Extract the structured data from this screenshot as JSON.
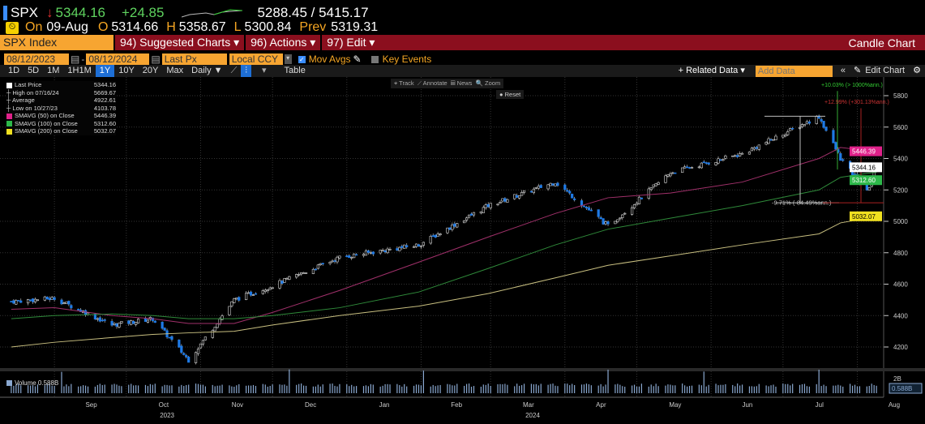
{
  "quote": {
    "ticker": "SPX",
    "arrow": "↓",
    "last": "5344.16",
    "change": "+24.85",
    "range": "5288.45 / 5415.17",
    "on_label": "On",
    "date": "09-Aug",
    "open_label": "O",
    "open": "5314.66",
    "high_label": "H",
    "high": "5358.67",
    "low_label": "L",
    "low": "5300.84",
    "prev_label": "Prev",
    "prev": "5319.31"
  },
  "menubar": {
    "security": "SPX Index",
    "suggested": "94) Suggested Charts ▾",
    "actions": "96) Actions ▾",
    "edit": "97) Edit ▾",
    "title": "Candle Chart"
  },
  "controls": {
    "start": "08/12/2023",
    "end": "08/12/2024",
    "field": "Last Px",
    "currency": "Local CCY",
    "mov_avgs": "Mov Avgs",
    "key_events": "Key Events"
  },
  "periods": [
    "1D",
    "5D",
    "1M",
    "1H1M",
    "1Y",
    "10Y",
    "20Y",
    "Max"
  ],
  "active_period": "1Y",
  "toolbar": {
    "frequency": "Daily ▼",
    "table": "Table",
    "related": "+ Related Data ▾",
    "add_data_placeholder": "Add Data",
    "edit_chart": "Edit Chart",
    "track": "⌖ Track",
    "annotate": "⟋ Annotate",
    "news": "▤ News",
    "zoom": "🔍 Zoom",
    "reset": "● Reset"
  },
  "legend": [
    {
      "label": "Last Price",
      "value": "5344.16",
      "color": "#ffffff"
    },
    {
      "label": "High on 07/16/24",
      "value": "5669.67"
    },
    {
      "label": "Average",
      "value": "4922.61"
    },
    {
      "label": "Low on 10/27/23",
      "value": "4103.78"
    },
    {
      "label": "SMAVG (50)  on Close",
      "value": "5446.39",
      "color": "#e0218a"
    },
    {
      "label": "SMAVG (100)  on Close",
      "value": "5312.60",
      "color": "#2db84a"
    },
    {
      "label": "SMAVG (200)  on Close",
      "value": "5032.07",
      "color": "#f0e020"
    }
  ],
  "annotations": {
    "up1": "+10.03% (> 1000%ann.)",
    "up2": "+12.99% (+301.13%ann.)",
    "down": "-9.71% (-84.49%ann.)"
  },
  "volume": {
    "label": "Volume",
    "value": "0.588B",
    "axis_tick": "2B"
  },
  "chart_data": {
    "type": "candlestick",
    "y_ticks": [
      4200,
      4400,
      4600,
      4800,
      5000,
      5200,
      5400,
      5600,
      5800
    ],
    "ylim": [
      4100,
      5900
    ],
    "x_months": [
      "Sep",
      "Oct",
      "Nov",
      "Dec",
      "Jan",
      "Feb",
      "Mar",
      "Apr",
      "May",
      "Jun",
      "Jul",
      "Aug"
    ],
    "x_years": [
      "2023",
      "2024"
    ],
    "approx_close_path": [
      [
        "2023-08-14",
        4490
      ],
      [
        "2023-09-01",
        4510
      ],
      [
        "2023-09-25",
        4340
      ],
      [
        "2023-10-12",
        4380
      ],
      [
        "2023-10-27",
        4117
      ],
      [
        "2023-11-15",
        4500
      ],
      [
        "2023-12-01",
        4590
      ],
      [
        "2023-12-29",
        4770
      ],
      [
        "2024-01-31",
        4850
      ],
      [
        "2024-02-29",
        5100
      ],
      [
        "2024-03-28",
        5250
      ],
      [
        "2024-04-19",
        4970
      ],
      [
        "2024-05-15",
        5310
      ],
      [
        "2024-06-14",
        5430
      ],
      [
        "2024-07-16",
        5667
      ],
      [
        "2024-07-25",
        5400
      ],
      [
        "2024-08-05",
        5186
      ],
      [
        "2024-08-09",
        5344
      ]
    ],
    "sma50_path": [
      4440,
      4450,
      4400,
      4380,
      4350,
      4350,
      4420,
      4560,
      4740,
      4900,
      5050,
      5150,
      5180,
      5250,
      5400,
      5470,
      5450,
      5446
    ],
    "sma100_path": [
      4380,
      4400,
      4410,
      4400,
      4380,
      4380,
      4400,
      4450,
      4550,
      4700,
      4850,
      4950,
      5020,
      5100,
      5200,
      5280,
      5305,
      5312
    ],
    "sma200_path": [
      4200,
      4230,
      4260,
      4280,
      4290,
      4300,
      4340,
      4400,
      4460,
      4540,
      4640,
      4720,
      4780,
      4850,
      4920,
      4990,
      5020,
      5032
    ],
    "labels": {
      "last": "5344.16",
      "sma50": "5446.39",
      "sma100": "5312.60",
      "sma200": "5032.07"
    }
  }
}
